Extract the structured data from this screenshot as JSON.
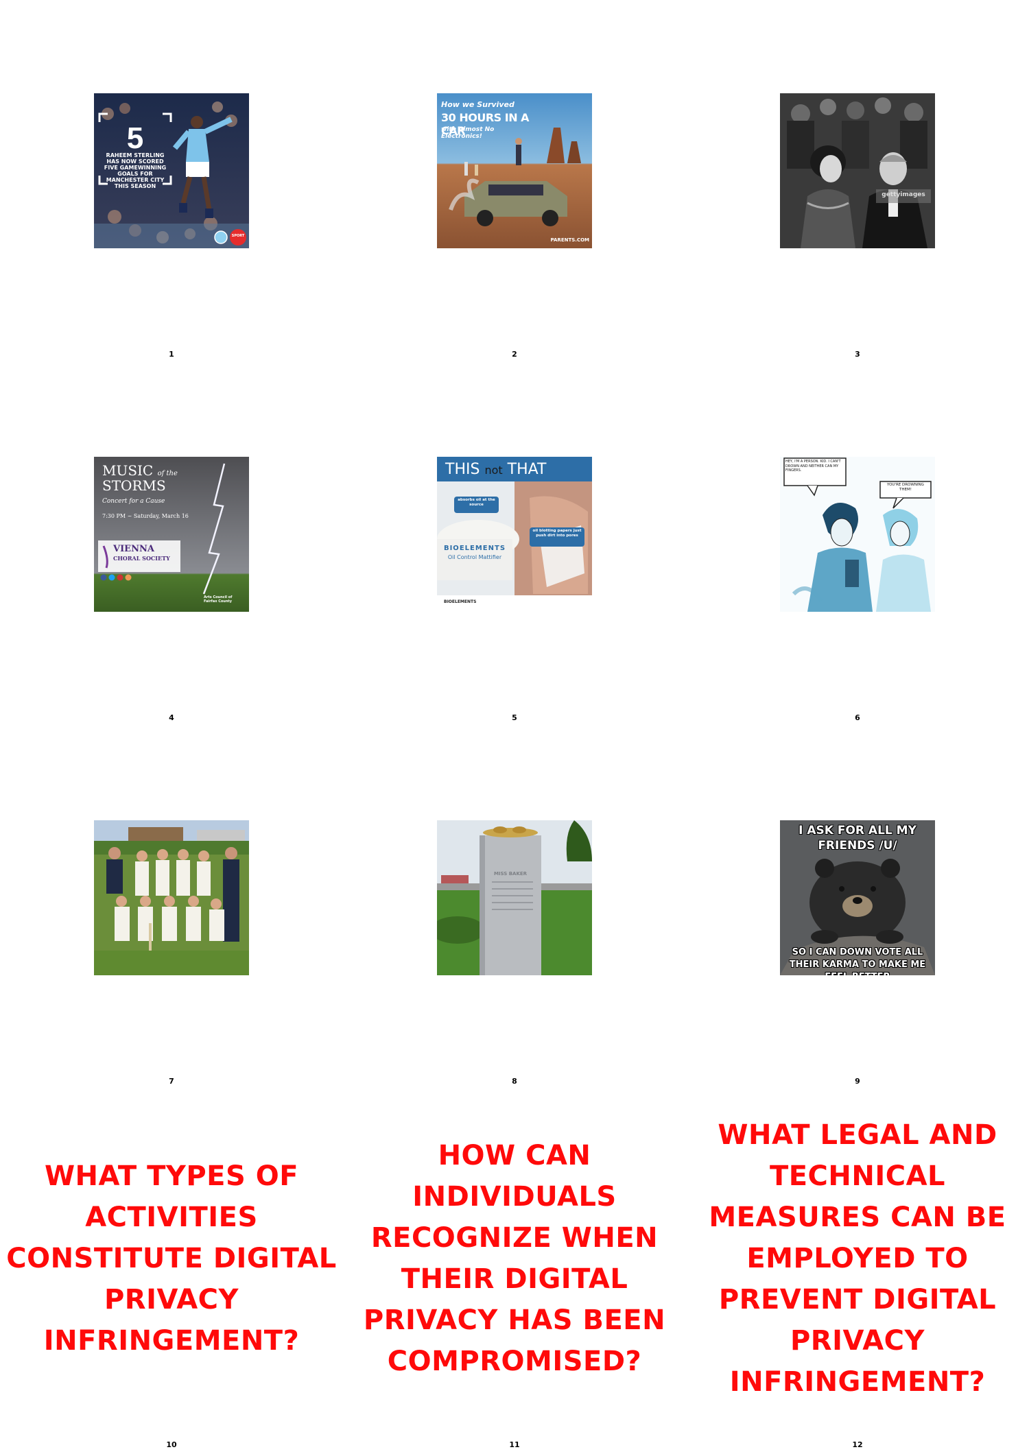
{
  "cells": [
    {
      "number": "1",
      "image": {
        "big_number": "5",
        "caption": "RAHEEM STERLING HAS NOW SCORED FIVE GAMEWINNING GOALS FOR MANCHESTER CITY THIS SEASON",
        "brand": "SPORT"
      }
    },
    {
      "number": "2",
      "image": {
        "line1": "How we Survived",
        "line2": "30 HOURS IN A CAR",
        "line3": "with Almost No Electronics!",
        "footer": "PARENTS.COM"
      }
    },
    {
      "number": "3",
      "image": {
        "watermark": "gettyimages"
      }
    },
    {
      "number": "4",
      "image": {
        "title1": "MUSIC",
        "title_small": "of the",
        "title2": "STORMS",
        "subtitle": "Concert for a Cause",
        "date": "7:30 PM ~ Saturday, March 16",
        "org1": "VIENNA",
        "org2": "CHORAL SOCIETY",
        "sponsor": "Arts Council of Fairfax County"
      }
    },
    {
      "number": "5",
      "image": {
        "headline_a": "THIS",
        "headline_not": "not",
        "headline_b": "THAT",
        "bubble1": "absorbs oil at the source",
        "bubble2": "oil blotting papers just push dirt into pores",
        "product": "BIOELEMENTS",
        "product_sub": "Oil Control Mattifier",
        "footer_brand": "BIOELEMENTS"
      }
    },
    {
      "number": "6",
      "image": {
        "speech1": "HEY, I'M A PERSON. KID. I CAN'T DROWN AND NEITHER CAN MY FINGERS.",
        "speech2": "YOU'RE DROWNING THEM!"
      }
    },
    {
      "number": "7",
      "image": {}
    },
    {
      "number": "8",
      "image": {
        "stone_text": "MISS BAKER"
      }
    },
    {
      "number": "9",
      "image": {
        "top_text": "I ASK FOR ALL MY FRIENDS /U/",
        "bottom_text": "SO I CAN DOWN VOTE ALL THEIR KARMA TO MAKE ME FEEL BETTER"
      }
    },
    {
      "number": "10",
      "question": "WHAT TYPES OF ACTIVITIES CONSTITUTE DIGITAL PRIVACY INFRINGEMENT?"
    },
    {
      "number": "11",
      "question": "HOW CAN INDIVIDUALS RECOGNIZE WHEN THEIR DIGITAL PRIVACY HAS BEEN COMPROMISED?"
    },
    {
      "number": "12",
      "question": "WHAT LEGAL AND TECHNICAL MEASURES CAN BE EMPLOYED TO PREVENT DIGITAL PRIVACY INFRINGEMENT?"
    }
  ],
  "colors": {
    "question_red": "#ff0a0a",
    "background": "#ffffff"
  }
}
